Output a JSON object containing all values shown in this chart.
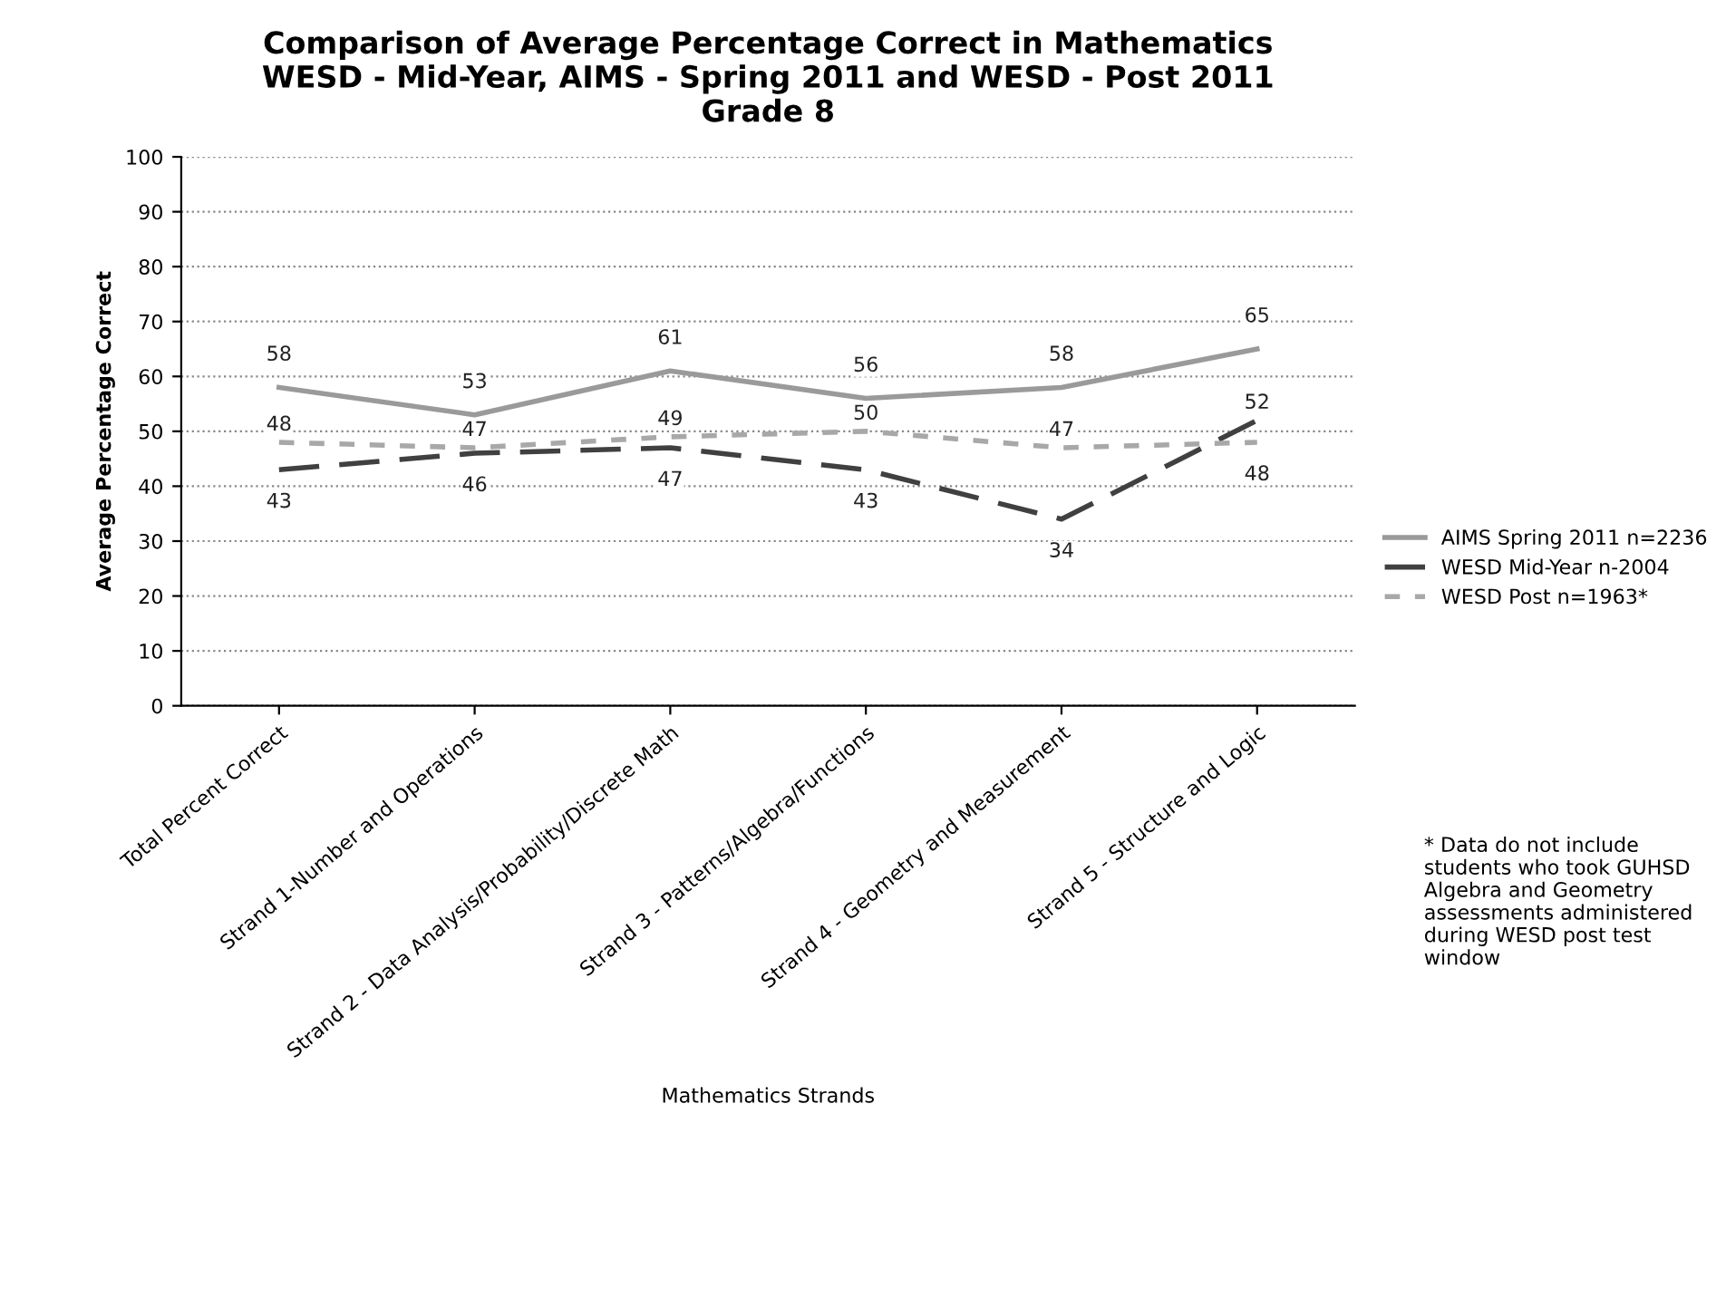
{
  "chart_data": {
    "type": "line",
    "title": "Comparison of Average Percentage Correct in Mathematics\nWESD - Mid-Year, AIMS - Spring 2011 and WESD - Post 2011\nGrade 8",
    "xlabel": "Mathematics Strands",
    "ylabel": "Average Percentage Correct",
    "categories": [
      "Total Percent Correct",
      "Strand 1-Number and Operations",
      "Strand 2 - Data Analysis/Probability/Discrete Math",
      "Strand 3 - Patterns/Algebra/Functions",
      "Strand 4 - Geometry and Measurement",
      "Strand 5 - Structure and Logic"
    ],
    "series": [
      {
        "name": "AIMS Spring 2011 n=2236",
        "color": "#9a9a9a",
        "line_style": "solid",
        "values": [
          58,
          53,
          61,
          56,
          58,
          65
        ]
      },
      {
        "name": "WESD Mid-Year n-2004",
        "color": "#404040",
        "line_style": "dashed",
        "values": [
          43,
          46,
          47,
          43,
          34,
          52
        ]
      },
      {
        "name": "WESD Post n=1963*",
        "color": "#a8a8a8",
        "line_style": "dotted",
        "values": [
          48,
          47,
          49,
          50,
          47,
          48
        ]
      }
    ],
    "ylim": [
      0,
      100
    ],
    "yticks": [
      0,
      10,
      20,
      30,
      40,
      50,
      60,
      70,
      80,
      90,
      100
    ],
    "grid": "y",
    "legend": "right",
    "data_labels": true,
    "marker": "none",
    "annotations": [
      "* Data do not include students who took GUHSD Algebra and Geometry assessments administered during WESD post test window"
    ]
  }
}
